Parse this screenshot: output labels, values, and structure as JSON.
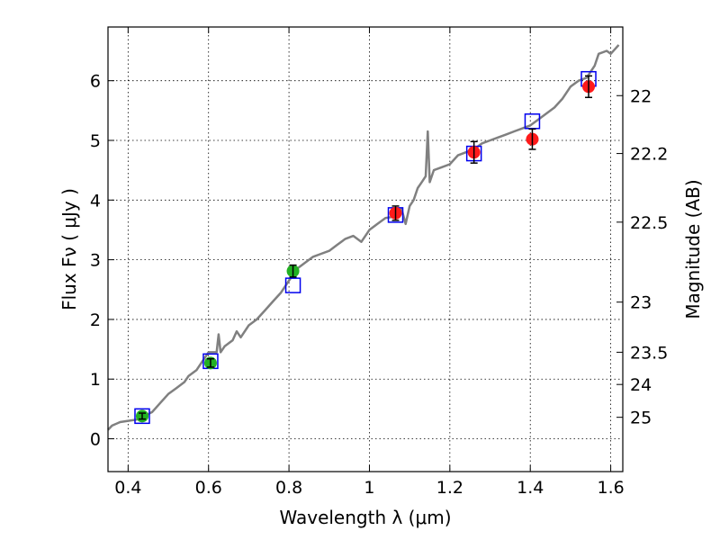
{
  "chart_data": {
    "type": "scatter",
    "title": "",
    "xlabel": "Wavelength  λ (μm)",
    "ylabel_left": "Flux  Fν  ( μJy )",
    "ylabel_right": "Magnitude (AB)",
    "xlim": [
      0.35,
      1.63
    ],
    "ylim": [
      -0.55,
      6.9
    ],
    "x_ticks": [
      0.4,
      0.6,
      0.8,
      1.0,
      1.2,
      1.4,
      1.6
    ],
    "x_tick_labels": [
      "0.4",
      "0.6",
      "0.8",
      "1",
      "1.2",
      "1.4",
      "1.6"
    ],
    "y_ticks": [
      0,
      1,
      2,
      3,
      4,
      5,
      6
    ],
    "y_tick_labels": [
      "0",
      "1",
      "2",
      "3",
      "4",
      "5",
      "6"
    ],
    "right_ticks": [
      {
        "label": "22",
        "flux": 5.75
      },
      {
        "label": "22.2",
        "flux": 4.78
      },
      {
        "label": "22.5",
        "flux": 3.63
      },
      {
        "label": "23",
        "flux": 2.29
      },
      {
        "label": "23.5",
        "flux": 1.45
      },
      {
        "label": "24",
        "flux": 0.91
      },
      {
        "label": "25",
        "flux": 0.36
      }
    ],
    "grid": true,
    "colors": {
      "model_line": "#808080",
      "green_points": "#22b022",
      "red_points": "#ff1a1a",
      "model_boxes": "#0000ee",
      "error_bars": "#000000"
    },
    "series": [
      {
        "name": "SED model spectrum",
        "style": "line",
        "x": [
          0.35,
          0.36,
          0.38,
          0.4,
          0.42,
          0.44,
          0.46,
          0.48,
          0.5,
          0.52,
          0.54,
          0.55,
          0.57,
          0.58,
          0.59,
          0.6,
          0.62,
          0.625,
          0.63,
          0.64,
          0.66,
          0.67,
          0.68,
          0.7,
          0.72,
          0.74,
          0.76,
          0.78,
          0.8,
          0.82,
          0.84,
          0.86,
          0.88,
          0.9,
          0.92,
          0.94,
          0.96,
          0.98,
          1.0,
          1.02,
          1.04,
          1.06,
          1.08,
          1.09,
          1.1,
          1.11,
          1.12,
          1.13,
          1.14,
          1.145,
          1.15,
          1.16,
          1.18,
          1.2,
          1.22,
          1.24,
          1.26,
          1.28,
          1.3,
          1.32,
          1.34,
          1.36,
          1.38,
          1.4,
          1.42,
          1.44,
          1.46,
          1.48,
          1.5,
          1.52,
          1.54,
          1.56,
          1.57,
          1.59,
          1.6,
          1.62
        ],
        "y": [
          0.15,
          0.22,
          0.28,
          0.3,
          0.32,
          0.38,
          0.45,
          0.6,
          0.75,
          0.85,
          0.95,
          1.05,
          1.15,
          1.25,
          1.35,
          1.45,
          1.45,
          1.75,
          1.45,
          1.55,
          1.65,
          1.8,
          1.7,
          1.9,
          2.0,
          2.15,
          2.3,
          2.45,
          2.65,
          2.85,
          2.95,
          3.05,
          3.1,
          3.15,
          3.25,
          3.35,
          3.4,
          3.3,
          3.5,
          3.6,
          3.7,
          3.72,
          3.85,
          3.6,
          3.9,
          4.0,
          4.2,
          4.3,
          4.4,
          5.15,
          4.3,
          4.5,
          4.55,
          4.6,
          4.75,
          4.8,
          4.85,
          4.95,
          5.0,
          5.05,
          5.1,
          5.15,
          5.2,
          5.25,
          5.35,
          5.45,
          5.55,
          5.7,
          5.9,
          6.0,
          6.05,
          6.25,
          6.45,
          6.5,
          6.45,
          6.6
        ]
      },
      {
        "name": "Model photometry",
        "style": "open-square",
        "x": [
          0.435,
          0.605,
          0.81,
          1.065,
          1.26,
          1.405,
          1.545
        ],
        "y": [
          0.38,
          1.3,
          2.57,
          3.75,
          4.78,
          5.32,
          6.03
        ]
      },
      {
        "name": "Optical photometry",
        "style": "filled-circle",
        "x": [
          0.435,
          0.605,
          0.81
        ],
        "y": [
          0.38,
          1.27,
          2.81
        ],
        "yerr": [
          0.05,
          0.07,
          0.1
        ]
      },
      {
        "name": "Near-IR photometry",
        "style": "filled-circle",
        "x": [
          1.065,
          1.26,
          1.405,
          1.545
        ],
        "y": [
          3.78,
          4.8,
          5.02,
          5.9
        ],
        "yerr": [
          0.12,
          0.18,
          0.17,
          0.18
        ]
      }
    ]
  }
}
